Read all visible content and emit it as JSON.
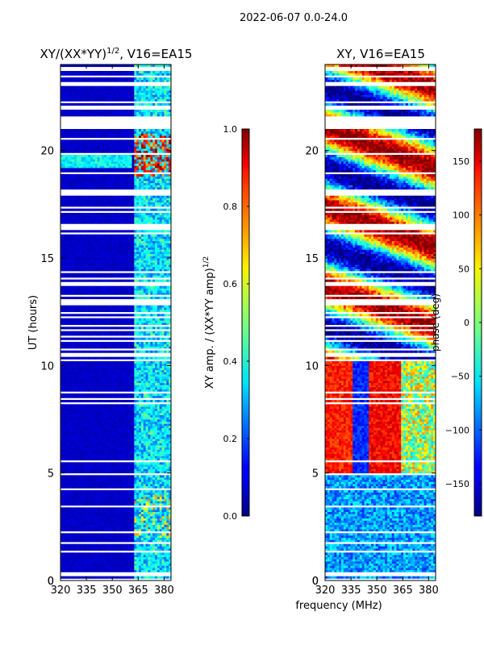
{
  "suptitle": "2022-06-07 0.0-24.0",
  "chart_data": [
    {
      "type": "heatmap",
      "title": "XY/(XX*YY)^1/2, V16=EA15",
      "title_main": "XY/(XX*YY)",
      "title_exp": "1/2",
      "title_suffix": ", V16=EA15",
      "xlabel": "",
      "ylabel": "UT (hours)",
      "xlim": [
        320,
        384
      ],
      "ylim": [
        0,
        24
      ],
      "xticks": [
        320,
        335,
        350,
        365,
        380
      ],
      "yticks": [
        0,
        5,
        10,
        15,
        20
      ],
      "colorbar": {
        "label": "XY amp. / (XX*YY amp)^1/2",
        "label_main": "XY amp. / (XX*YY amp)",
        "label_exp": "1/2",
        "range": [
          0.0,
          1.0
        ],
        "ticks": [
          "0.0",
          "0.2",
          "0.4",
          "0.6",
          "0.8",
          "1.0"
        ],
        "tick_values": [
          0.0,
          0.2,
          0.4,
          0.6,
          0.8,
          1.0
        ]
      }
    },
    {
      "type": "heatmap",
      "title": "XY, V16=EA15",
      "xlabel": "frequency (MHz)",
      "ylabel": "",
      "xlim": [
        320,
        384
      ],
      "ylim": [
        0,
        24
      ],
      "xticks": [
        320,
        335,
        350,
        365,
        380
      ],
      "yticks": [
        0,
        5,
        10,
        15,
        20
      ],
      "colorbar": {
        "label": "phase (deg)",
        "range": [
          -180,
          180
        ],
        "ticks": [
          "−150",
          "−100",
          "−50",
          "0",
          "50",
          "100",
          "150"
        ],
        "tick_values": [
          -150,
          -100,
          -50,
          0,
          50,
          100,
          150
        ]
      }
    }
  ]
}
